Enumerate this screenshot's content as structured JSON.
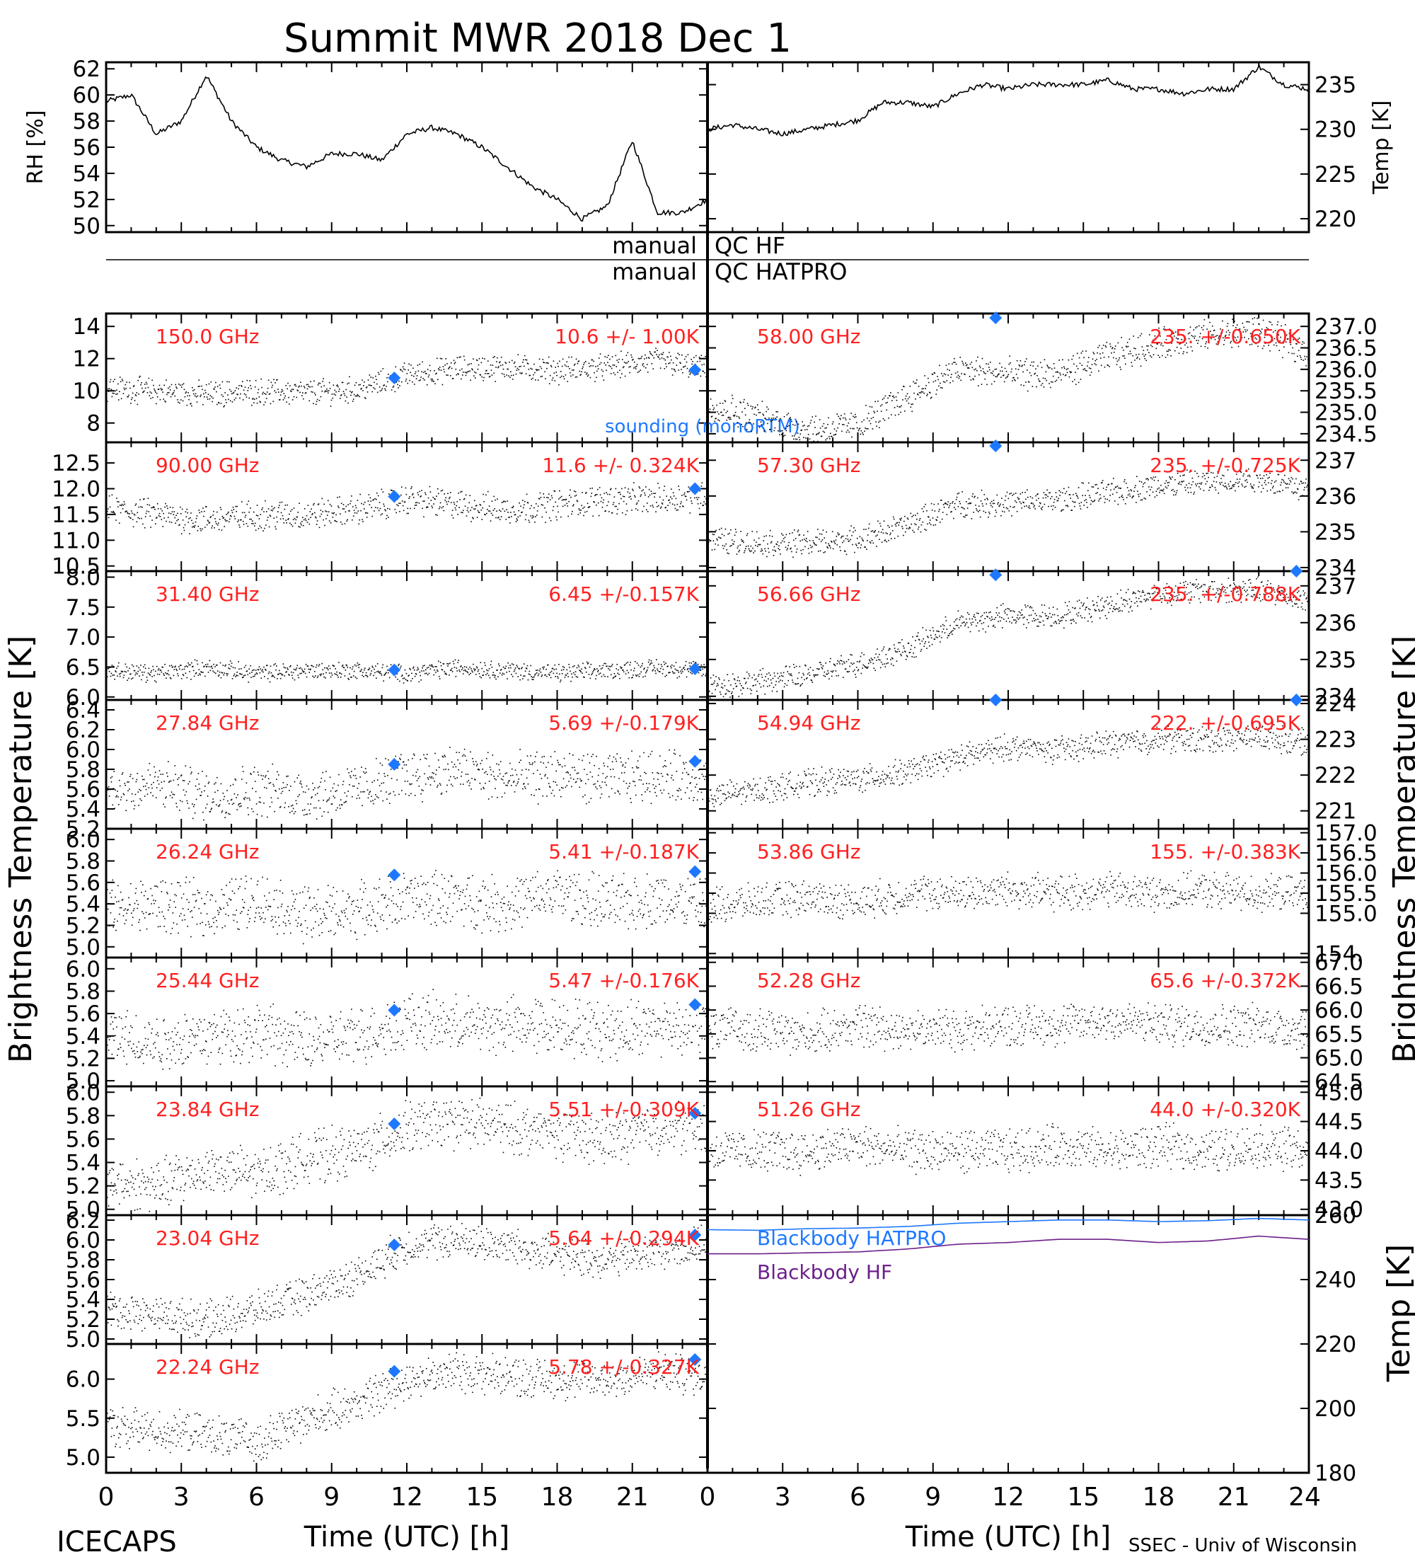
{
  "title": "Summit MWR 2018 Dec  1",
  "footer": {
    "left": "ICECAPS",
    "right": "SSEC - Univ of Wisconsin"
  },
  "colors": {
    "data": "#000000",
    "label": "#ff2020",
    "sounding": "#1e78ff",
    "bb_hatpro": "#1e78ff",
    "bb_hf": "#6b1f8a"
  },
  "chart_data": [
    {
      "type": "line",
      "id": "rh",
      "ylabel": "RH [%]",
      "ylim": [
        49.5,
        62.5
      ],
      "yticks": [
        "50",
        "52",
        "54",
        "56",
        "58",
        "60",
        "62"
      ],
      "xlim": [
        0,
        24
      ],
      "series": [
        {
          "x": [
            0,
            1,
            2,
            3,
            4,
            5,
            6,
            7,
            8,
            9,
            10,
            11,
            12,
            13,
            14,
            15,
            16,
            17,
            18,
            19,
            20,
            21,
            22,
            23,
            24
          ],
          "values": [
            59.5,
            60,
            57,
            58,
            61.5,
            58,
            56,
            55,
            54.5,
            55.5,
            55.5,
            55,
            57,
            57.5,
            57,
            56,
            54.5,
            53,
            52,
            50.5,
            51.5,
            56.5,
            51,
            51,
            52
          ]
        }
      ]
    },
    {
      "type": "line",
      "id": "temp",
      "ylabel": "Temp [K]",
      "ylim": [
        218.5,
        237.5
      ],
      "yticks": [
        "220",
        "225",
        "230",
        "235"
      ],
      "xlim": [
        0,
        24
      ],
      "series": [
        {
          "x": [
            0,
            1,
            2,
            3,
            4,
            5,
            6,
            7,
            8,
            9,
            10,
            11,
            12,
            13,
            14,
            15,
            16,
            17,
            18,
            19,
            20,
            21,
            22,
            23,
            24
          ],
          "values": [
            230,
            230.5,
            230,
            229.5,
            230,
            230.5,
            231,
            233,
            233,
            232.5,
            234,
            235,
            234.5,
            235,
            235,
            235,
            235.5,
            234.5,
            234.5,
            234,
            234.5,
            234.5,
            237,
            235,
            234.5
          ]
        }
      ]
    },
    {
      "type": "scatter",
      "id": "150",
      "label": "150.0 GHz",
      "stat": "10.6 +/-  1.00K",
      "side": "left",
      "ylim": [
        6.8,
        14.8
      ],
      "yticks": [
        "8",
        "10",
        "12",
        "14"
      ],
      "x": [
        0,
        2,
        4,
        6,
        8,
        10,
        12,
        14,
        16,
        18,
        20,
        22,
        24
      ],
      "values": [
        10.2,
        10,
        9.8,
        10,
        9.9,
        10.1,
        11,
        11.4,
        11.5,
        11.3,
        11.5,
        11.9,
        11.3
      ],
      "noise": 1.1,
      "sounding": [
        [
          11.5,
          10.8
        ],
        [
          23.5,
          11.3
        ]
      ],
      "annotation": "sounding (monoRTM)"
    },
    {
      "type": "scatter",
      "id": "90",
      "label": "90.00 GHz",
      "stat": "11.6 +/- 0.324K",
      "side": "left",
      "ylim": [
        10.4,
        12.9
      ],
      "yticks": [
        "10.5",
        "11.0",
        "11.5",
        "12.0",
        "12.5"
      ],
      "x": [
        0,
        2,
        4,
        6,
        8,
        10,
        12,
        14,
        16,
        18,
        20,
        22,
        24
      ],
      "values": [
        11.6,
        11.5,
        11.4,
        11.5,
        11.5,
        11.6,
        11.8,
        11.7,
        11.6,
        11.7,
        11.8,
        11.8,
        11.9
      ],
      "noise": 0.4,
      "sounding": [
        [
          11.5,
          11.85
        ],
        [
          23.5,
          12.0
        ]
      ]
    },
    {
      "type": "scatter",
      "id": "31",
      "label": "31.40 GHz",
      "stat": "6.45 +/-0.157K",
      "side": "left",
      "ylim": [
        5.95,
        8.1
      ],
      "yticks": [
        "6.0",
        "6.5",
        "7.0",
        "7.5",
        "8.0"
      ],
      "x": [
        0,
        2,
        4,
        6,
        8,
        10,
        12,
        14,
        16,
        18,
        20,
        22,
        24
      ],
      "values": [
        6.45,
        6.4,
        6.5,
        6.4,
        6.45,
        6.45,
        6.4,
        6.5,
        6.45,
        6.4,
        6.45,
        6.5,
        6.45
      ],
      "noise": 0.2,
      "sounding": [
        [
          11.5,
          6.45
        ],
        [
          23.5,
          6.47
        ]
      ]
    },
    {
      "type": "scatter",
      "id": "27",
      "label": "27.84 GHz",
      "stat": "5.69 +/-0.179K",
      "side": "left",
      "ylim": [
        5.2,
        6.5
      ],
      "yticks": [
        "5.2",
        "5.4",
        "5.6",
        "5.8",
        "6.0",
        "6.2",
        "6.4"
      ],
      "x": [
        0,
        2,
        4,
        6,
        8,
        10,
        12,
        14,
        16,
        18,
        20,
        22,
        24
      ],
      "values": [
        5.6,
        5.65,
        5.55,
        5.6,
        5.55,
        5.6,
        5.75,
        5.8,
        5.7,
        5.75,
        5.7,
        5.75,
        5.7
      ],
      "noise": 0.35,
      "sounding": [
        [
          11.5,
          5.85
        ],
        [
          23.5,
          5.88
        ]
      ]
    },
    {
      "type": "scatter",
      "id": "26",
      "label": "26.24 GHz",
      "stat": "5.41 +/-0.187K",
      "side": "left",
      "ylim": [
        4.9,
        6.1
      ],
      "yticks": [
        "5.0",
        "5.2",
        "5.4",
        "5.6",
        "5.8",
        "6.0"
      ],
      "x": [
        0,
        2,
        4,
        6,
        8,
        10,
        12,
        14,
        16,
        18,
        20,
        22,
        24
      ],
      "values": [
        5.35,
        5.4,
        5.35,
        5.45,
        5.3,
        5.35,
        5.45,
        5.45,
        5.4,
        5.5,
        5.4,
        5.45,
        5.4
      ],
      "noise": 0.35,
      "sounding": [
        [
          11.5,
          5.67
        ],
        [
          23.5,
          5.7
        ]
      ]
    },
    {
      "type": "scatter",
      "id": "25",
      "label": "25.44 GHz",
      "stat": "5.47 +/-0.176K",
      "side": "left",
      "ylim": [
        4.95,
        6.1
      ],
      "yticks": [
        "5.0",
        "5.2",
        "5.4",
        "5.6",
        "5.8",
        "6.0"
      ],
      "x": [
        0,
        2,
        4,
        6,
        8,
        10,
        12,
        14,
        16,
        18,
        20,
        22,
        24
      ],
      "values": [
        5.4,
        5.35,
        5.4,
        5.45,
        5.35,
        5.4,
        5.55,
        5.5,
        5.5,
        5.5,
        5.45,
        5.5,
        5.5
      ],
      "noise": 0.35,
      "sounding": [
        [
          11.5,
          5.63
        ],
        [
          23.5,
          5.68
        ]
      ]
    },
    {
      "type": "scatter",
      "id": "23_84",
      "label": "23.84 GHz",
      "stat": "5.51 +/-0.309K",
      "side": "left",
      "ylim": [
        4.95,
        6.05
      ],
      "yticks": [
        "5.0",
        "5.2",
        "5.4",
        "5.6",
        "5.8",
        "6.0"
      ],
      "x": [
        0,
        2,
        4,
        6,
        8,
        10,
        12,
        14,
        16,
        18,
        20,
        22,
        24
      ],
      "values": [
        5.25,
        5.2,
        5.35,
        5.3,
        5.45,
        5.5,
        5.7,
        5.75,
        5.7,
        5.65,
        5.6,
        5.7,
        5.7
      ],
      "noise": 0.3,
      "sounding": [
        [
          11.5,
          5.73
        ],
        [
          23.5,
          5.82
        ]
      ]
    },
    {
      "type": "scatter",
      "id": "23_04",
      "label": "23.04 GHz",
      "stat": "5.64 +/-0.294K",
      "side": "left",
      "ylim": [
        4.95,
        6.25
      ],
      "yticks": [
        "5.0",
        "5.2",
        "5.4",
        "5.6",
        "5.8",
        "6.0",
        "6.2"
      ],
      "x": [
        0,
        2,
        4,
        6,
        8,
        10,
        12,
        14,
        16,
        18,
        20,
        22,
        24
      ],
      "values": [
        5.3,
        5.25,
        5.2,
        5.3,
        5.45,
        5.65,
        5.95,
        6.0,
        5.95,
        5.85,
        5.8,
        5.9,
        5.95
      ],
      "noise": 0.25,
      "sounding": [
        [
          11.5,
          5.95
        ],
        [
          23.5,
          6.05
        ]
      ]
    },
    {
      "type": "scatter",
      "id": "22",
      "label": "22.24 GHz",
      "stat": "5.78 +/-0.327K",
      "side": "left",
      "ylim": [
        4.8,
        6.45
      ],
      "yticks": [
        "5.0",
        "5.5",
        "6.0"
      ],
      "x": [
        0,
        2,
        4,
        6,
        8,
        10,
        12,
        14,
        16,
        18,
        20,
        22,
        24
      ],
      "values": [
        5.4,
        5.35,
        5.3,
        5.2,
        5.5,
        5.7,
        6.0,
        6.1,
        6.05,
        6.0,
        6.0,
        6.1,
        6.05
      ],
      "noise": 0.35,
      "sounding": [
        [
          11.5,
          6.1
        ],
        [
          23.5,
          6.25
        ]
      ]
    },
    {
      "type": "scatter",
      "id": "58",
      "label": "58.00 GHz",
      "stat": "235. +/-0.650K",
      "side": "right",
      "ylim": [
        234.3,
        237.3
      ],
      "yticks": [
        "234.5",
        "235.0",
        "235.5",
        "236.0",
        "236.5",
        "237.0"
      ],
      "x": [
        0,
        2,
        4,
        6,
        8,
        10,
        12,
        14,
        16,
        18,
        20,
        22,
        24
      ],
      "values": [
        235.2,
        234.9,
        234.6,
        234.7,
        235.4,
        236.0,
        235.9,
        235.9,
        236.3,
        236.6,
        236.8,
        236.9,
        236.4
      ],
      "noise": 0.5,
      "sounding": [
        [
          11.5,
          237.2
        ]
      ]
    },
    {
      "type": "scatter",
      "id": "57_30",
      "label": "57.30 GHz",
      "stat": "235. +/-0.725K",
      "side": "right",
      "ylim": [
        233.9,
        237.5
      ],
      "yticks": [
        "234",
        "235",
        "236",
        "237"
      ],
      "x": [
        0,
        2,
        4,
        6,
        8,
        10,
        12,
        14,
        16,
        18,
        20,
        22,
        24
      ],
      "values": [
        234.8,
        234.7,
        234.7,
        234.8,
        235.2,
        235.8,
        235.8,
        235.9,
        236.1,
        236.3,
        236.4,
        236.5,
        236.2
      ],
      "noise": 0.5,
      "sounding": [
        [
          11.5,
          237.4
        ]
      ]
    },
    {
      "type": "scatter",
      "id": "56",
      "label": "56.66 GHz",
      "stat": "235. +/-0.788K",
      "side": "right",
      "ylim": [
        233.9,
        237.4
      ],
      "yticks": [
        "234",
        "235",
        "236",
        "237"
      ],
      "x": [
        0,
        2,
        4,
        6,
        8,
        10,
        12,
        14,
        16,
        18,
        20,
        22,
        24
      ],
      "values": [
        234.3,
        234.4,
        234.6,
        234.9,
        235.3,
        236.0,
        236.2,
        236.2,
        236.5,
        236.8,
        236.9,
        236.9,
        236.6
      ],
      "noise": 0.45,
      "sounding": [
        [
          11.5,
          237.3
        ],
        [
          23.5,
          237.55
        ]
      ]
    },
    {
      "type": "scatter",
      "id": "54",
      "label": "54.94 GHz",
      "stat": "222. +/-0.695K",
      "side": "right",
      "ylim": [
        220.5,
        224.1
      ],
      "yticks": [
        "221",
        "222",
        "223",
        "224"
      ],
      "x": [
        0,
        2,
        4,
        6,
        8,
        10,
        12,
        14,
        16,
        18,
        20,
        22,
        24
      ],
      "values": [
        221.4,
        221.6,
        221.8,
        221.9,
        222.1,
        222.5,
        222.8,
        222.7,
        222.9,
        223.0,
        223.0,
        223.1,
        222.9
      ],
      "noise": 0.5,
      "sounding": [
        [
          11.5,
          224.1
        ],
        [
          23.5,
          224.1
        ]
      ]
    },
    {
      "type": "scatter",
      "id": "53",
      "label": "53.86 GHz",
      "stat": "155. +/-0.383K",
      "side": "right",
      "ylim": [
        153.9,
        157.1
      ],
      "yticks": [
        "154.",
        "155.0",
        "155.5",
        "156.0",
        "156.5",
        "157.0"
      ],
      "x": [
        0,
        2,
        4,
        6,
        8,
        10,
        12,
        14,
        16,
        18,
        20,
        22,
        24
      ],
      "values": [
        155.2,
        155.3,
        155.4,
        155.3,
        155.5,
        155.5,
        155.6,
        155.5,
        155.6,
        155.5,
        155.6,
        155.5,
        155.5
      ],
      "noise": 0.6
    },
    {
      "type": "scatter",
      "id": "52",
      "label": "52.28 GHz",
      "stat": "65.6 +/-0.372K",
      "side": "right",
      "ylim": [
        64.4,
        67.1
      ],
      "yticks": [
        "64.5",
        "65.0",
        "65.5",
        "66.0",
        "66.5",
        "67.0"
      ],
      "x": [
        0,
        2,
        4,
        6,
        8,
        10,
        12,
        14,
        16,
        18,
        20,
        22,
        24
      ],
      "values": [
        65.6,
        65.6,
        65.5,
        65.7,
        65.6,
        65.6,
        65.7,
        65.7,
        65.8,
        65.7,
        65.7,
        65.7,
        65.6
      ],
      "noise": 0.6
    },
    {
      "type": "scatter",
      "id": "51",
      "label": "51.26 GHz",
      "stat": "44.0 +/-0.320K",
      "side": "right",
      "ylim": [
        42.9,
        45.1
      ],
      "yticks": [
        "43.0",
        "43.5",
        "44.0",
        "44.5",
        "45.0"
      ],
      "x": [
        0,
        2,
        4,
        6,
        8,
        10,
        12,
        14,
        16,
        18,
        20,
        22,
        24
      ],
      "values": [
        44.0,
        44.0,
        44.0,
        44.1,
        44.0,
        44.0,
        44.0,
        44.1,
        44.0,
        44.1,
        44.0,
        44.1,
        44.0
      ],
      "noise": 0.5
    },
    {
      "type": "line",
      "id": "blackbody",
      "side": "right",
      "ylabel": "Temp [K]",
      "ylim": [
        180,
        260
      ],
      "yticks": [
        "180",
        "200",
        "220",
        "240",
        "260"
      ],
      "x": [
        0,
        2,
        4,
        6,
        8,
        10,
        12,
        14,
        16,
        18,
        20,
        22,
        24
      ],
      "series": [
        {
          "name": "Blackbody HATPRO",
          "values": [
            255.5,
            255.3,
            255.8,
            256.0,
            256.5,
            257.5,
            258.0,
            258.5,
            258.5,
            258.0,
            258.3,
            259.0,
            258.5
          ]
        },
        {
          "name": "Blackbody HF",
          "values": [
            248.0,
            248.0,
            248.3,
            248.6,
            249.5,
            251.0,
            251.5,
            252.5,
            252.5,
            251.5,
            252.0,
            253.5,
            252.5
          ]
        }
      ]
    }
  ],
  "xaxis": {
    "xlabel": "Time (UTC) [h]",
    "ticks": [
      "0",
      "3",
      "6",
      "9",
      "12",
      "15",
      "18",
      "21",
      "24"
    ],
    "left_ticks": [
      "0",
      "3",
      "6",
      "9",
      "12",
      "15",
      "18",
      "21"
    ]
  },
  "shared_ylabel": "Brightness Temperature [K]",
  "qc": {
    "hf_left": "manual",
    "hf_right": "QC HF",
    "hatpro_left": "manual",
    "hatpro_right": "QC HATPRO"
  }
}
